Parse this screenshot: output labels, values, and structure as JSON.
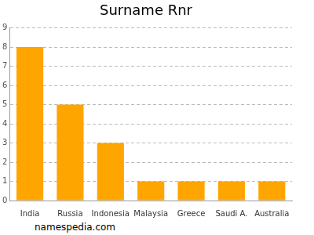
{
  "chart_data": {
    "type": "bar",
    "title": "Surname Rnr",
    "categories": [
      "India",
      "Russia",
      "Indonesia",
      "Malaysia",
      "Greece",
      "Saudi A.",
      "Australia"
    ],
    "values": [
      8,
      5,
      3,
      1,
      1,
      1,
      1
    ],
    "color": "#ffa500",
    "ylim": [
      0,
      9
    ],
    "yticks": [
      0,
      1,
      2,
      3,
      4,
      5,
      6,
      7,
      8,
      9
    ],
    "grid": true,
    "annotation": "namespedia.com"
  }
}
